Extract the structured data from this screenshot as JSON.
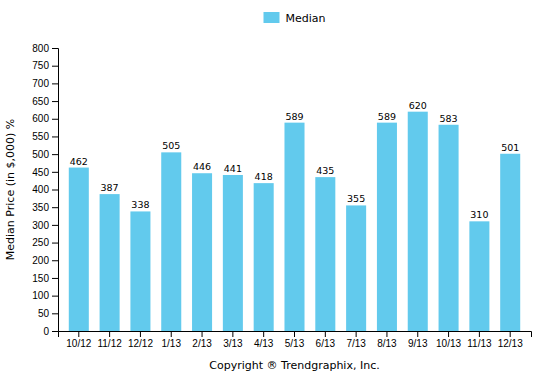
{
  "chart_data": {
    "type": "bar",
    "categories": [
      "10/12",
      "11/12",
      "12/12",
      "1/13",
      "2/13",
      "3/13",
      "4/13",
      "5/13",
      "6/13",
      "7/13",
      "8/13",
      "9/13",
      "10/13",
      "11/13",
      "12/13"
    ],
    "series": [
      {
        "name": "Median",
        "color": "#62CAED",
        "values": [
          462,
          387,
          338,
          505,
          446,
          441,
          418,
          589,
          435,
          355,
          589,
          620,
          583,
          310,
          501
        ]
      }
    ],
    "xlabel": "Copyright ® Trendgraphix, Inc.",
    "ylabel": "Median Price (in $,000) %",
    "ylim": [
      0,
      800
    ],
    "yticks": [
      0,
      50,
      100,
      150,
      200,
      250,
      300,
      350,
      400,
      450,
      500,
      550,
      600,
      650,
      700,
      750,
      800
    ],
    "grid": false,
    "legend": "top",
    "data_labels": true
  }
}
